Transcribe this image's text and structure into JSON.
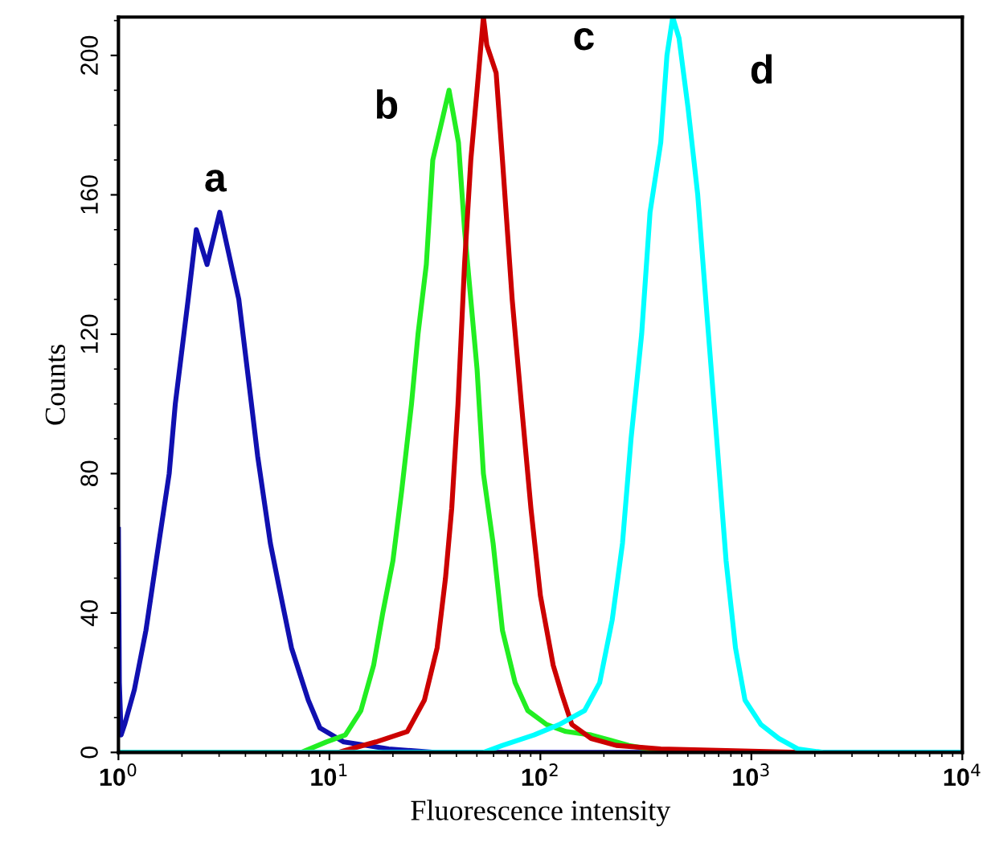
{
  "chart_data": {
    "type": "line",
    "xlabel": "Fluorescence intensity",
    "ylabel": "Counts",
    "log": "x",
    "grid": false,
    "legend": false,
    "marker": "none",
    "line_style": "solid",
    "xlim": [
      1,
      10000
    ],
    "ylim": [
      0,
      211
    ],
    "xticks": [
      {
        "value": 1,
        "label": "10$^{0}$"
      },
      {
        "value": 10,
        "label": "10$^{1}$"
      },
      {
        "value": 100,
        "label": "10$^{2}$"
      },
      {
        "value": 1000,
        "label": "10$^{3}$"
      },
      {
        "value": 10000,
        "label": "10$^{4}$"
      }
    ],
    "yticks": [
      0,
      40,
      80,
      120,
      160,
      200
    ],
    "series": [
      {
        "name": "a",
        "color": "#1010b0",
        "x": [
          1,
          1.01,
          1.03,
          1.07,
          1.19,
          1.35,
          1.51,
          1.74,
          1.86,
          2.14,
          2.34,
          2.63,
          3.02,
          3.72,
          4.27,
          4.57,
          5.25,
          5.75,
          6.61,
          7.94,
          9.02,
          11.7,
          19.1,
          31.6,
          100,
          10000
        ],
        "values": [
          64,
          20,
          5,
          8,
          18,
          35,
          55,
          80,
          100,
          130,
          150,
          140,
          155,
          130,
          100,
          85,
          60,
          48,
          30,
          15,
          7,
          3,
          1,
          0,
          0,
          0
        ]
      },
      {
        "name": "b",
        "color": "#22ee22",
        "x": [
          1,
          7.35,
          9.66,
          11.9,
          14.1,
          16.2,
          17.9,
          20.0,
          22.0,
          24.5,
          26.3,
          28.8,
          30.9,
          34.4,
          36.9,
          40.9,
          43.7,
          50.1,
          53.7,
          59.7,
          66.1,
          75.9,
          87.1,
          107,
          132,
          174,
          263,
          398
        ],
        "values": [
          0,
          0,
          3,
          5,
          12,
          25,
          40,
          55,
          75,
          100,
          120,
          140,
          170,
          182,
          190,
          175,
          150,
          110,
          80,
          60,
          35,
          20,
          12,
          8,
          6,
          5,
          2,
          0
        ]
      },
      {
        "name": "c",
        "color": "#cc0000",
        "x": [
          1,
          11.0,
          12.6,
          16.6,
          23.4,
          28.2,
          32.4,
          35.5,
          38.0,
          40.7,
          43.7,
          46.8,
          50.1,
          53.7,
          55.7,
          61.7,
          66.1,
          73.5,
          81.3,
          90.2,
          100,
          115,
          126,
          141,
          174,
          229,
          372,
          1660
        ],
        "values": [
          0,
          0,
          1,
          3,
          6,
          15,
          30,
          50,
          70,
          100,
          140,
          170,
          190,
          211,
          203,
          195,
          170,
          130,
          100,
          70,
          45,
          25,
          17,
          8,
          4,
          2,
          1,
          0
        ]
      },
      {
        "name": "d",
        "color": "#00ffff",
        "x": [
          1,
          53.7,
          66.1,
          93.3,
          123,
          162,
          191,
          219,
          245,
          269,
          302,
          331,
          372,
          398,
          424,
          454,
          501,
          557,
          617,
          685,
          759,
          841,
          933,
          1110,
          1350,
          1660,
          2190,
          10000
        ],
        "values": [
          0,
          0,
          2,
          5,
          8,
          12,
          20,
          38,
          60,
          90,
          120,
          155,
          175,
          200,
          211,
          205,
          185,
          160,
          125,
          90,
          55,
          30,
          15,
          8,
          4,
          1,
          0,
          0
        ]
      }
    ]
  }
}
